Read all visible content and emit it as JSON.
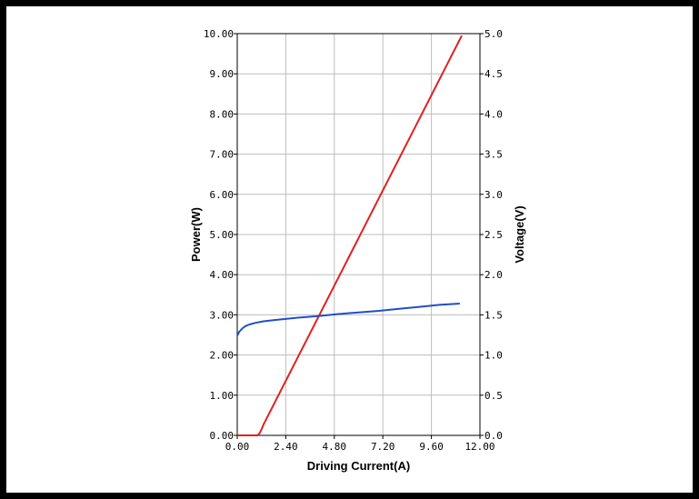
{
  "chart_data": {
    "type": "line",
    "xlabel": "Driving Current(A)",
    "ylabel": "Power(W)",
    "y2label": "Voltage(V)",
    "xlim": [
      0,
      12
    ],
    "ylim": [
      0,
      10
    ],
    "y2lim": [
      0,
      5
    ],
    "grid": true,
    "legend": "none",
    "x_tick_labels": [
      "0.00",
      "2.40",
      "4.80",
      "7.20",
      "9.60",
      "12.00"
    ],
    "y_tick_labels": [
      "0.00",
      "1.00",
      "2.00",
      "3.00",
      "4.00",
      "5.00",
      "6.00",
      "7.00",
      "8.00",
      "9.00",
      "10.00"
    ],
    "y2_tick_labels": [
      "0.0",
      "0.5",
      "1.0",
      "1.5",
      "2.0",
      "2.5",
      "3.0",
      "3.5",
      "4.0",
      "4.5",
      "5.0"
    ],
    "series": [
      {
        "axis": "left",
        "color": "#e02020",
        "x": [
          0,
          0.5,
          1.0,
          1.1,
          1.2,
          1.3,
          11.1
        ],
        "y": [
          0,
          0,
          0,
          0.05,
          0.15,
          0.27,
          9.95
        ]
      },
      {
        "axis": "right",
        "color": "#1f4fc9",
        "x": [
          0,
          0.1,
          0.25,
          0.4,
          0.6,
          0.9,
          1.3,
          2.0,
          3.0,
          4.0,
          5.0,
          6.0,
          7.0,
          8.0,
          9.0,
          10.0,
          11.0
        ],
        "y": [
          1.24,
          1.29,
          1.33,
          1.36,
          1.38,
          1.4,
          1.42,
          1.44,
          1.465,
          1.485,
          1.51,
          1.53,
          1.55,
          1.575,
          1.6,
          1.625,
          1.64
        ]
      }
    ]
  }
}
